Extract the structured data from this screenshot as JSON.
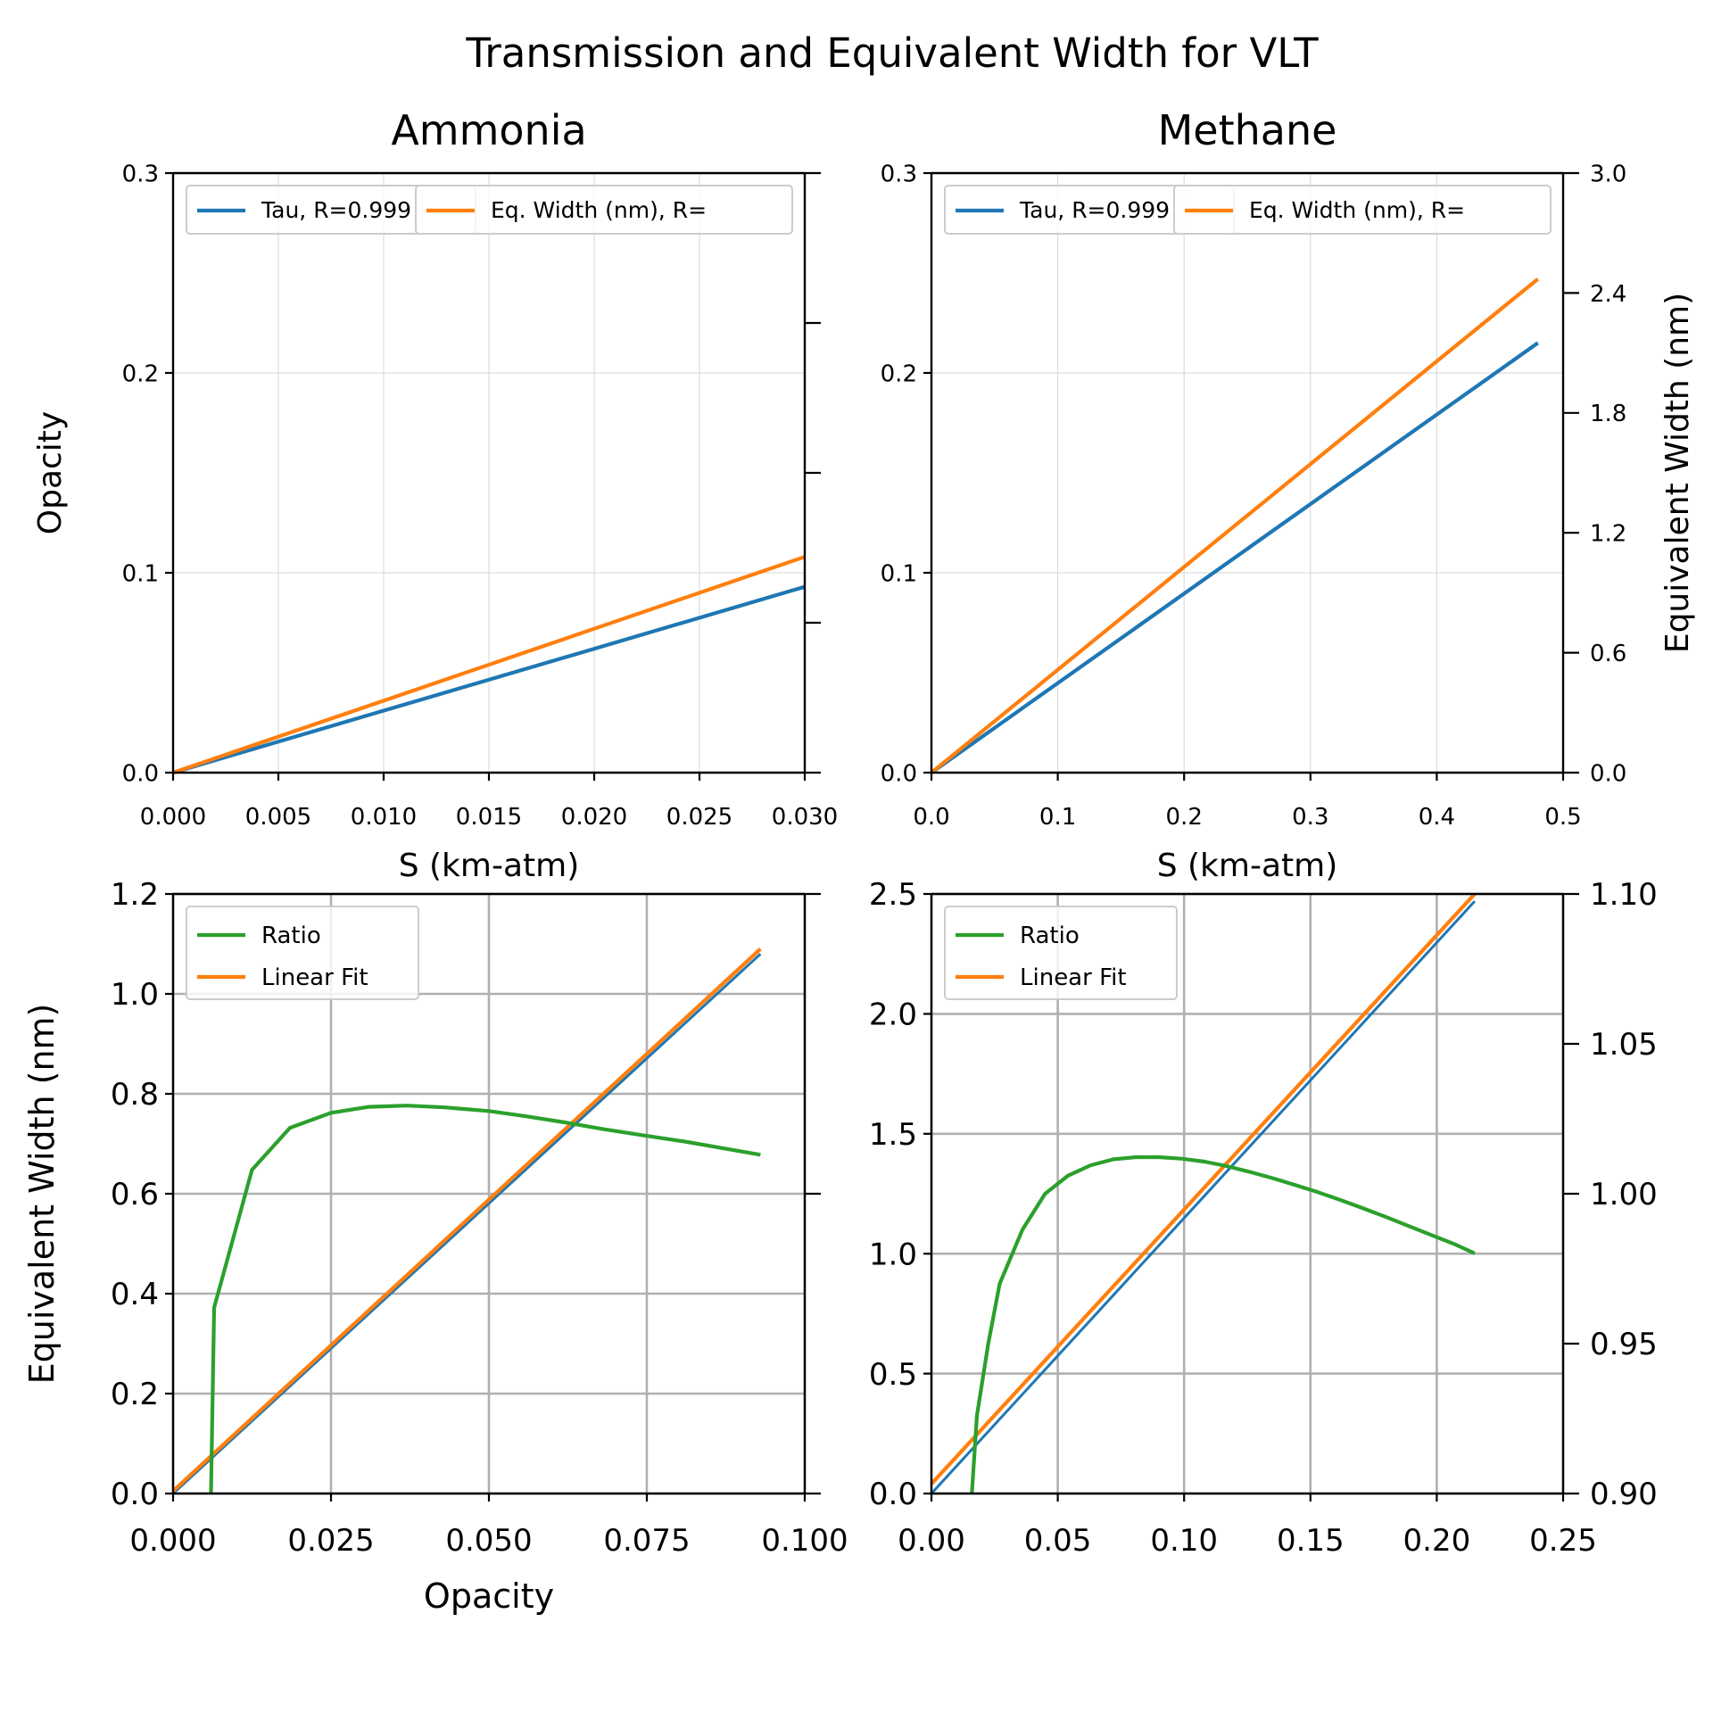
{
  "figure": {
    "title": "Transmission and Equivalent Width for VLT"
  },
  "colors": {
    "blue": "#1f77b4",
    "orange": "#ff7f0e",
    "green": "#2ca02c",
    "grid": "#b0b0b0",
    "axis": "#000000"
  },
  "chart_data": [
    {
      "type": "line",
      "title": "Ammonia",
      "xlabel": "S (km-atm)",
      "ylabel": "Opacity",
      "y2label": "",
      "xlim": [
        0,
        0.03
      ],
      "ylim": [
        0,
        0.3
      ],
      "y2lim": [
        0,
        0.5
      ],
      "xticks": [
        "0.000",
        "0.005",
        "0.010",
        "0.015",
        "0.020",
        "0.025",
        "0.030"
      ],
      "yticks": [
        "0.0",
        "0.1",
        "0.2",
        "0.3"
      ],
      "y2ticks": [
        "",
        "",
        "",
        "",
        ""
      ],
      "grid": "light",
      "legend": {
        "position": "top",
        "overlapping": true,
        "entries": [
          "Tau, R=0.999",
          "Eq. Width (nm), R="
        ]
      },
      "series": [
        {
          "name": "Tau, R=0.999",
          "color": "blue",
          "axis": "left",
          "x": [
            0,
            0.03
          ],
          "y": [
            0,
            0.093
          ]
        },
        {
          "name": "Eq. Width (nm), R=",
          "color": "orange",
          "axis": "left",
          "x": [
            0,
            0.03
          ],
          "y": [
            0,
            0.108
          ]
        }
      ]
    },
    {
      "type": "line",
      "title": "Methane",
      "xlabel": "S (km-atm)",
      "ylabel": "",
      "y2label": "Equivalent Width (nm)",
      "xlim": [
        0,
        0.5
      ],
      "ylim": [
        0,
        0.3
      ],
      "y2lim": [
        0,
        3.0
      ],
      "xticks": [
        "0.0",
        "0.1",
        "0.2",
        "0.3",
        "0.4",
        "0.5"
      ],
      "yticks": [
        "0.0",
        "0.1",
        "0.2",
        "0.3"
      ],
      "y2ticks": [
        "0.0",
        "0.6",
        "1.2",
        "1.8",
        "2.4",
        "3.0"
      ],
      "grid": "light",
      "legend": {
        "position": "top",
        "overlapping": true,
        "entries": [
          "Tau, R=0.999",
          "Eq. Width (nm), R="
        ]
      },
      "series": [
        {
          "name": "Tau, R=0.999",
          "color": "blue",
          "axis": "left",
          "x": [
            0,
            0.48
          ],
          "y": [
            0,
            0.215
          ]
        },
        {
          "name": "Eq. Width (nm), R=",
          "color": "orange",
          "axis": "left",
          "x": [
            0,
            0.48
          ],
          "y": [
            0,
            0.247
          ]
        }
      ]
    },
    {
      "type": "line",
      "title": "",
      "xlabel": "Opacity",
      "ylabel": "Equivalent Width (nm)",
      "y2label": "",
      "xlim": [
        0,
        0.1
      ],
      "ylim": [
        0,
        1.2
      ],
      "y2lim": [
        0,
        1.0
      ],
      "xticks": [
        "0.000",
        "0.025",
        "0.050",
        "0.075",
        "0.100"
      ],
      "yticks": [
        "0.0",
        "0.2",
        "0.4",
        "0.6",
        "0.8",
        "1.0",
        "1.2"
      ],
      "y2ticks": [
        "",
        "",
        ""
      ],
      "grid": "strong",
      "legend": {
        "position": "top-left",
        "entries": [
          "Ratio",
          "Linear Fit"
        ]
      },
      "series": [
        {
          "name": "",
          "color": "blue",
          "axis": "left",
          "x": [
            0,
            0.093
          ],
          "y": [
            0,
            1.08
          ]
        },
        {
          "name": "Linear Fit",
          "color": "orange",
          "axis": "left",
          "x": [
            0,
            0.093
          ],
          "y": [
            0.005,
            1.09
          ]
        },
        {
          "name": "Ratio",
          "color": "green",
          "axis": "right",
          "x": [
            0.006,
            0.0065,
            0.0125,
            0.0185,
            0.025,
            0.031,
            0.037,
            0.043,
            0.05,
            0.056,
            0.062,
            0.068,
            0.074,
            0.081,
            0.087,
            0.093
          ],
          "y": [
            0.0,
            0.31,
            0.54,
            0.61,
            0.635,
            0.645,
            0.647,
            0.644,
            0.638,
            0.629,
            0.619,
            0.608,
            0.598,
            0.587,
            0.576,
            0.565
          ]
        }
      ]
    },
    {
      "type": "line",
      "title": "",
      "xlabel": "",
      "ylabel": "",
      "y2label": "",
      "xlim": [
        0,
        0.25
      ],
      "ylim": [
        0,
        2.5
      ],
      "y2lim": [
        0.9,
        1.1
      ],
      "xticks": [
        "0.00",
        "0.05",
        "0.10",
        "0.15",
        "0.20",
        "0.25"
      ],
      "yticks": [
        "0.0",
        "0.5",
        "1.0",
        "1.5",
        "2.0",
        "2.5"
      ],
      "y2ticks": [
        "0.90",
        "0.95",
        "1.00",
        "1.05",
        "1.10"
      ],
      "grid": "strong",
      "legend": {
        "position": "top-left",
        "entries": [
          "Ratio",
          "Linear Fit"
        ]
      },
      "series": [
        {
          "name": "",
          "color": "blue",
          "axis": "left",
          "x": [
            0,
            0.215
          ],
          "y": [
            0,
            2.47
          ]
        },
        {
          "name": "Linear Fit",
          "color": "orange",
          "axis": "left",
          "x": [
            0,
            0.215
          ],
          "y": [
            0.04,
            2.5
          ]
        },
        {
          "name": "Ratio",
          "color": "green",
          "axis": "right",
          "x": [
            0.016,
            0.018,
            0.0225,
            0.027,
            0.036,
            0.045,
            0.054,
            0.063,
            0.072,
            0.081,
            0.09,
            0.099,
            0.108,
            0.117,
            0.126,
            0.135,
            0.144,
            0.153,
            0.162,
            0.171,
            0.18,
            0.189,
            0.198,
            0.207,
            0.215
          ],
          "y": [
            0.9,
            0.926,
            0.95,
            0.97,
            0.988,
            1.0,
            1.006,
            1.0095,
            1.0115,
            1.0122,
            1.0122,
            1.0117,
            1.0107,
            1.0092,
            1.0073,
            1.0052,
            1.0029,
            1.0005,
            0.9979,
            0.9951,
            0.9922,
            0.9892,
            0.9862,
            0.9832,
            0.9801
          ]
        }
      ]
    }
  ]
}
